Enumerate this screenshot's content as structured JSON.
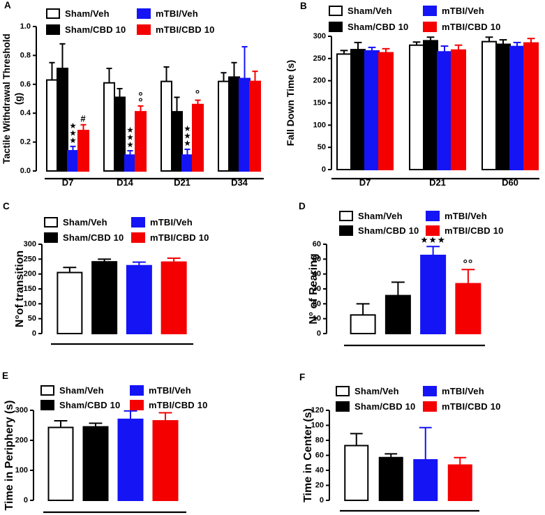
{
  "groups": [
    {
      "name": "Sham/Veh",
      "fill": "#FFFFFF",
      "edge": "#000000",
      "error_color": "#000000"
    },
    {
      "name": "Sham/CBD 10",
      "fill": "#000000",
      "edge": "#000000",
      "error_color": "#000000"
    },
    {
      "name": "mTBI/Veh",
      "fill": "#1414F5",
      "edge": "#1414F5",
      "error_color": "#1414F5"
    },
    {
      "name": "mTBI/CBD 10",
      "fill": "#F40000",
      "edge": "#F40000",
      "error_color": "#F40000"
    }
  ],
  "legend": {
    "items": [
      "Sham/Veh",
      "Sham/CBD 10",
      "mTBI/Veh",
      "mTBI/CBD 10"
    ],
    "position": "top"
  },
  "chart_data": [
    {
      "type": "bar",
      "panel": "A",
      "ylabel": "Tactile Withdrawal Threshold (g)",
      "ylabel_lines": [
        "Tactile Withdrawal Threshold",
        "(g)"
      ],
      "ylim": [
        0,
        1.0
      ],
      "yticks": [
        0,
        0.2,
        0.4,
        0.6,
        0.8,
        1.0
      ],
      "categories": [
        "D7",
        "D14",
        "D21",
        "D34"
      ],
      "series": [
        {
          "name": "Sham/Veh",
          "values": [
            0.63,
            0.61,
            0.62,
            0.62
          ],
          "errors": [
            0.12,
            0.1,
            0.1,
            0.06
          ]
        },
        {
          "name": "Sham/CBD 10",
          "values": [
            0.71,
            0.51,
            0.41,
            0.65
          ],
          "errors": [
            0.17,
            0.06,
            0.1,
            0.1
          ]
        },
        {
          "name": "mTBI/Veh",
          "values": [
            0.14,
            0.11,
            0.11,
            0.64
          ],
          "errors": [
            0.03,
            0.03,
            0.04,
            0.22
          ]
        },
        {
          "name": "mTBI/CBD 10",
          "values": [
            0.28,
            0.41,
            0.46,
            0.62
          ],
          "errors": [
            0.04,
            0.04,
            0.03,
            0.07
          ]
        }
      ],
      "annotations": [
        {
          "category": "D7",
          "series": "mTBI/Veh",
          "text": "***",
          "stacked": true
        },
        {
          "category": "D7",
          "series": "mTBI/CBD 10",
          "text": "#",
          "stacked": false
        },
        {
          "category": "D14",
          "series": "mTBI/Veh",
          "text": "***",
          "stacked": true
        },
        {
          "category": "D14",
          "series": "mTBI/CBD 10",
          "text": "°°",
          "stacked": true
        },
        {
          "category": "D21",
          "series": "mTBI/Veh",
          "text": "***",
          "stacked": true
        },
        {
          "category": "D21",
          "series": "mTBI/CBD 10",
          "text": "°",
          "stacked": false
        }
      ]
    },
    {
      "type": "bar",
      "panel": "B",
      "ylabel": "Fall Down Time (s)",
      "ylabel_lines": [
        "Fall Down Time (s)"
      ],
      "ylim": [
        0,
        300
      ],
      "yticks": [
        0,
        50,
        100,
        150,
        200,
        250,
        300
      ],
      "categories": [
        "D7",
        "D21",
        "D60"
      ],
      "series": [
        {
          "name": "Sham/Veh",
          "values": [
            260,
            280,
            288
          ],
          "errors": [
            8,
            7,
            10
          ]
        },
        {
          "name": "Sham/CBD 10",
          "values": [
            270,
            290,
            282
          ],
          "errors": [
            16,
            8,
            10
          ]
        },
        {
          "name": "mTBI/Veh",
          "values": [
            267,
            265,
            277
          ],
          "errors": [
            8,
            13,
            9
          ]
        },
        {
          "name": "mTBI/CBD 10",
          "values": [
            263,
            269,
            285
          ],
          "errors": [
            9,
            11,
            10
          ]
        }
      ],
      "annotations": []
    },
    {
      "type": "bar",
      "panel": "C",
      "ylabel": "N°of transition",
      "ylabel_lines": [
        "N°of transition"
      ],
      "ylim": [
        0,
        300
      ],
      "yticks": [
        0,
        50,
        100,
        150,
        200,
        250,
        300
      ],
      "categories": [
        ""
      ],
      "series": [
        {
          "name": "Sham/Veh",
          "values": [
            205
          ],
          "errors": [
            17
          ]
        },
        {
          "name": "Sham/CBD 10",
          "values": [
            241
          ],
          "errors": [
            9
          ]
        },
        {
          "name": "mTBI/Veh",
          "values": [
            228
          ],
          "errors": [
            12
          ]
        },
        {
          "name": "mTBI/CBD 10",
          "values": [
            240
          ],
          "errors": [
            13
          ]
        }
      ],
      "annotations": []
    },
    {
      "type": "bar",
      "panel": "D",
      "ylabel": "N° of Rearing",
      "ylabel_lines": [
        "N° of Rearing"
      ],
      "ylim": [
        0,
        60
      ],
      "yticks": [
        0,
        10,
        20,
        30,
        40,
        50,
        60
      ],
      "categories": [
        ""
      ],
      "series": [
        {
          "name": "Sham/Veh",
          "values": [
            12.5
          ],
          "errors": [
            7.5
          ]
        },
        {
          "name": "Sham/CBD 10",
          "values": [
            25.5
          ],
          "errors": [
            9
          ]
        },
        {
          "name": "mTBI/Veh",
          "values": [
            52.5
          ],
          "errors": [
            6
          ]
        },
        {
          "name": "mTBI/CBD 10",
          "values": [
            33.5
          ],
          "errors": [
            9.5
          ]
        }
      ],
      "annotations": [
        {
          "category": "",
          "series": "mTBI/Veh",
          "text": "***",
          "stacked": false
        },
        {
          "category": "",
          "series": "mTBI/CBD 10",
          "text": "°°",
          "stacked": false
        }
      ]
    },
    {
      "type": "bar",
      "panel": "E",
      "ylabel": "Time in Periphery (s)",
      "ylabel_lines": [
        "Time in Periphery (s)"
      ],
      "ylim": [
        0,
        300
      ],
      "yticks": [
        0,
        100,
        200,
        300
      ],
      "categories": [
        ""
      ],
      "series": [
        {
          "name": "Sham/Veh",
          "values": [
            243
          ],
          "errors": [
            22
          ]
        },
        {
          "name": "Sham/CBD 10",
          "values": [
            245
          ],
          "errors": [
            12
          ]
        },
        {
          "name": "mTBI/Veh",
          "values": [
            270
          ],
          "errors": [
            28
          ]
        },
        {
          "name": "mTBI/CBD 10",
          "values": [
            265
          ],
          "errors": [
            27
          ]
        }
      ],
      "annotations": []
    },
    {
      "type": "bar",
      "panel": "F",
      "ylabel": "Time in Center (s)",
      "ylabel_lines": [
        "Time in Center (s)"
      ],
      "ylim": [
        0,
        120
      ],
      "yticks": [
        0,
        20,
        40,
        60,
        80,
        100,
        120
      ],
      "categories": [
        ""
      ],
      "series": [
        {
          "name": "Sham/Veh",
          "values": [
            73
          ],
          "errors": [
            16
          ]
        },
        {
          "name": "Sham/CBD 10",
          "values": [
            57
          ],
          "errors": [
            5
          ]
        },
        {
          "name": "mTBI/Veh",
          "values": [
            54
          ],
          "errors": [
            43
          ]
        },
        {
          "name": "mTBI/CBD 10",
          "values": [
            47
          ],
          "errors": [
            10
          ]
        }
      ],
      "annotations": []
    }
  ]
}
